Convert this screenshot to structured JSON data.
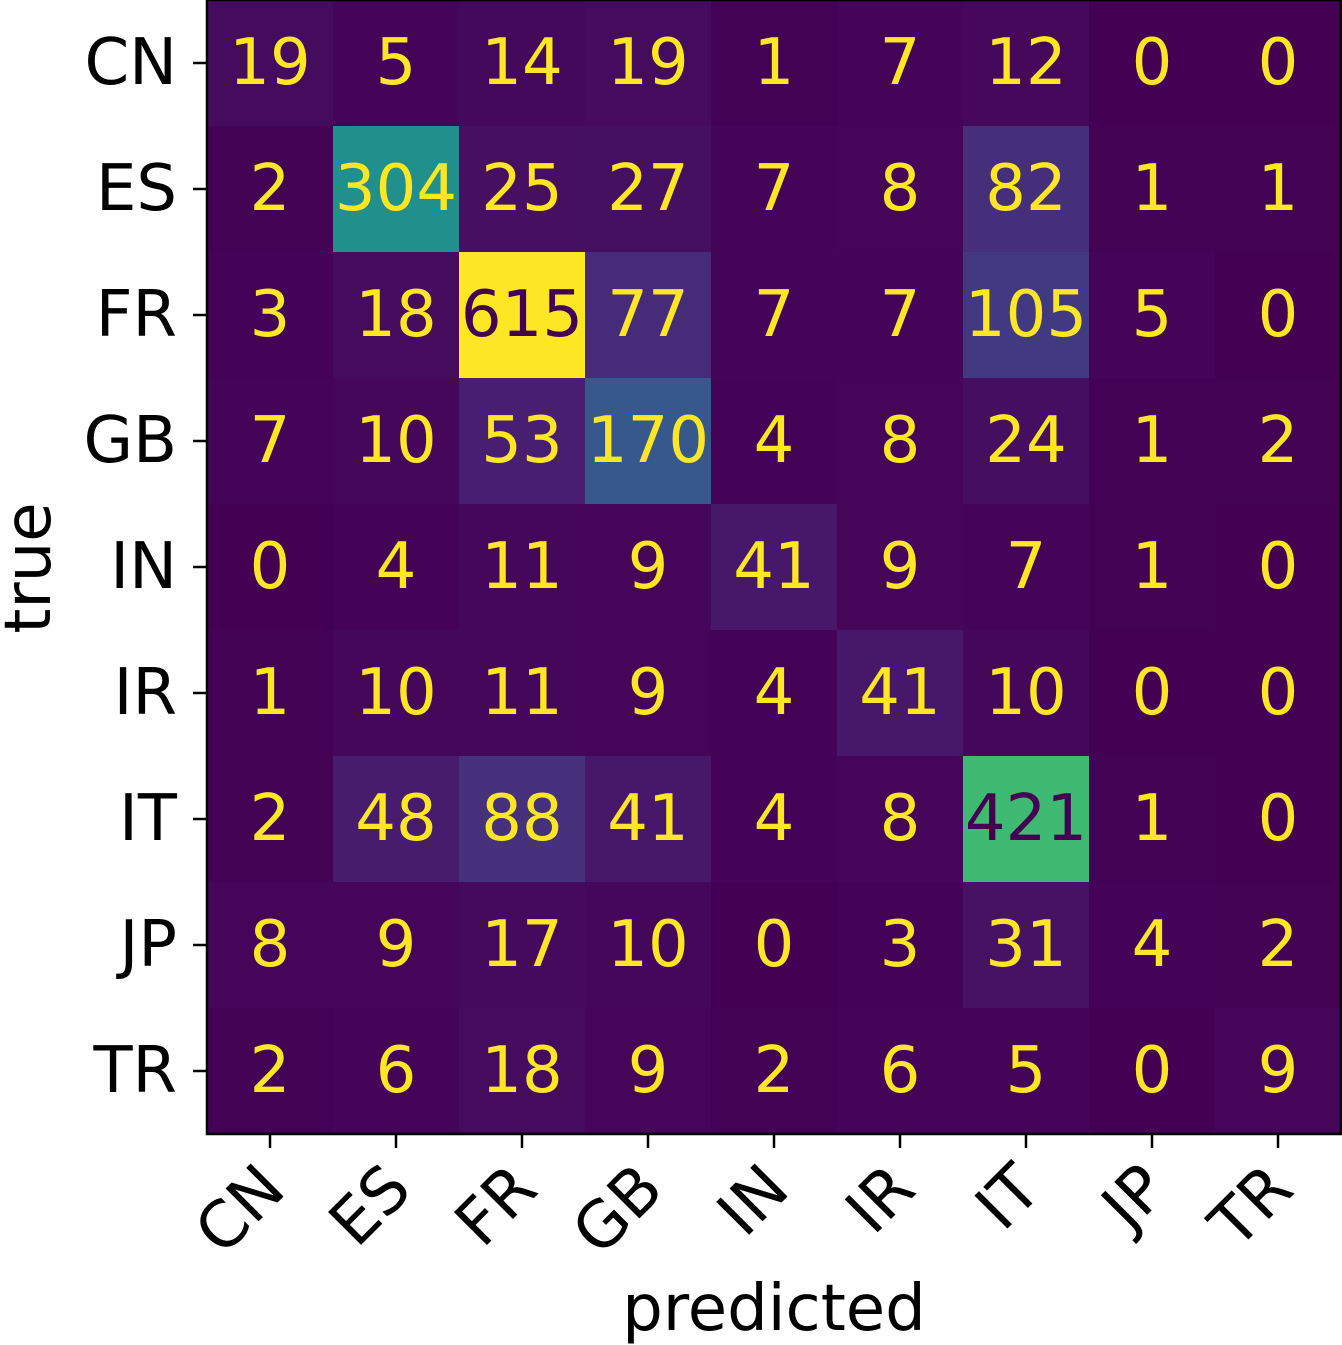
{
  "chart_data": {
    "type": "heatmap",
    "title": "",
    "xlabel": "predicted",
    "ylabel": "true",
    "x_categories": [
      "CN",
      "ES",
      "FR",
      "GB",
      "IN",
      "IR",
      "IT",
      "JP",
      "TR"
    ],
    "y_categories": [
      "CN",
      "ES",
      "FR",
      "GB",
      "IN",
      "IR",
      "IT",
      "JP",
      "TR"
    ],
    "values": [
      [
        19,
        5,
        14,
        19,
        1,
        7,
        12,
        0,
        0
      ],
      [
        2,
        304,
        25,
        27,
        7,
        8,
        82,
        1,
        1
      ],
      [
        3,
        18,
        615,
        77,
        7,
        7,
        105,
        5,
        0
      ],
      [
        7,
        10,
        53,
        170,
        4,
        8,
        24,
        1,
        2
      ],
      [
        0,
        4,
        11,
        9,
        41,
        9,
        7,
        1,
        0
      ],
      [
        1,
        10,
        11,
        9,
        4,
        41,
        10,
        0,
        0
      ],
      [
        2,
        48,
        88,
        41,
        4,
        8,
        421,
        1,
        0
      ],
      [
        8,
        9,
        17,
        10,
        0,
        3,
        31,
        4,
        2
      ],
      [
        2,
        6,
        18,
        9,
        2,
        6,
        5,
        0,
        9
      ]
    ],
    "colormap": "viridis",
    "value_range": [
      0,
      615
    ],
    "grid": false,
    "text_colors": {
      "light": "#fde725",
      "dark": "#440154"
    }
  }
}
